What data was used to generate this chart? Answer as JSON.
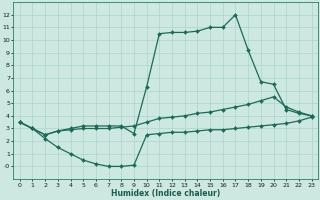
{
  "xlabel": "Humidex (Indice chaleur)",
  "background_color": "#cce8e0",
  "grid_color": "#b0d8d0",
  "line_color": "#1a6b5a",
  "xlim": [
    -0.5,
    23.5
  ],
  "ylim": [
    -1,
    13
  ],
  "xticks": [
    0,
    1,
    2,
    3,
    4,
    5,
    6,
    7,
    8,
    9,
    10,
    11,
    12,
    13,
    14,
    15,
    16,
    17,
    18,
    19,
    20,
    21,
    22,
    23
  ],
  "yticks": [
    0,
    1,
    2,
    3,
    4,
    5,
    6,
    7,
    8,
    9,
    10,
    11,
    12
  ],
  "ytick_labels": [
    "-0",
    "1",
    "2",
    "3",
    "4",
    "5",
    "6",
    "7",
    "8",
    "9",
    "10",
    "11",
    "12"
  ],
  "series": [
    {
      "x": [
        0,
        1,
        2,
        3,
        4,
        5,
        6,
        7,
        8,
        9,
        10,
        11,
        12,
        13,
        14,
        15,
        16,
        17,
        18,
        19,
        20,
        21,
        22,
        23
      ],
      "y": [
        3.5,
        3.0,
        2.2,
        1.5,
        1.0,
        0.5,
        0.2,
        0.0,
        0.0,
        0.1,
        2.5,
        2.6,
        2.7,
        2.7,
        2.8,
        2.9,
        2.9,
        3.0,
        3.1,
        3.2,
        3.3,
        3.4,
        3.6,
        3.9
      ]
    },
    {
      "x": [
        0,
        1,
        2,
        3,
        4,
        5,
        6,
        7,
        8,
        9,
        10,
        11,
        12,
        13,
        14,
        15,
        16,
        17,
        18,
        19,
        20,
        21,
        22,
        23
      ],
      "y": [
        3.5,
        3.0,
        2.5,
        2.8,
        2.9,
        3.0,
        3.0,
        3.0,
        3.1,
        3.2,
        3.5,
        3.8,
        3.9,
        4.0,
        4.2,
        4.3,
        4.5,
        4.7,
        4.9,
        5.2,
        5.5,
        4.7,
        4.3,
        4.0
      ]
    },
    {
      "x": [
        0,
        1,
        2,
        3,
        4,
        5,
        6,
        7,
        8,
        9,
        10,
        11,
        12,
        13,
        14,
        15,
        16,
        17,
        18,
        19,
        20,
        21,
        22,
        23
      ],
      "y": [
        3.5,
        3.0,
        2.5,
        2.8,
        3.0,
        3.2,
        3.2,
        3.2,
        3.2,
        2.6,
        6.3,
        10.5,
        10.6,
        10.6,
        10.7,
        11.0,
        11.0,
        12.0,
        9.2,
        6.7,
        6.5,
        4.5,
        4.2,
        4.0
      ]
    }
  ]
}
